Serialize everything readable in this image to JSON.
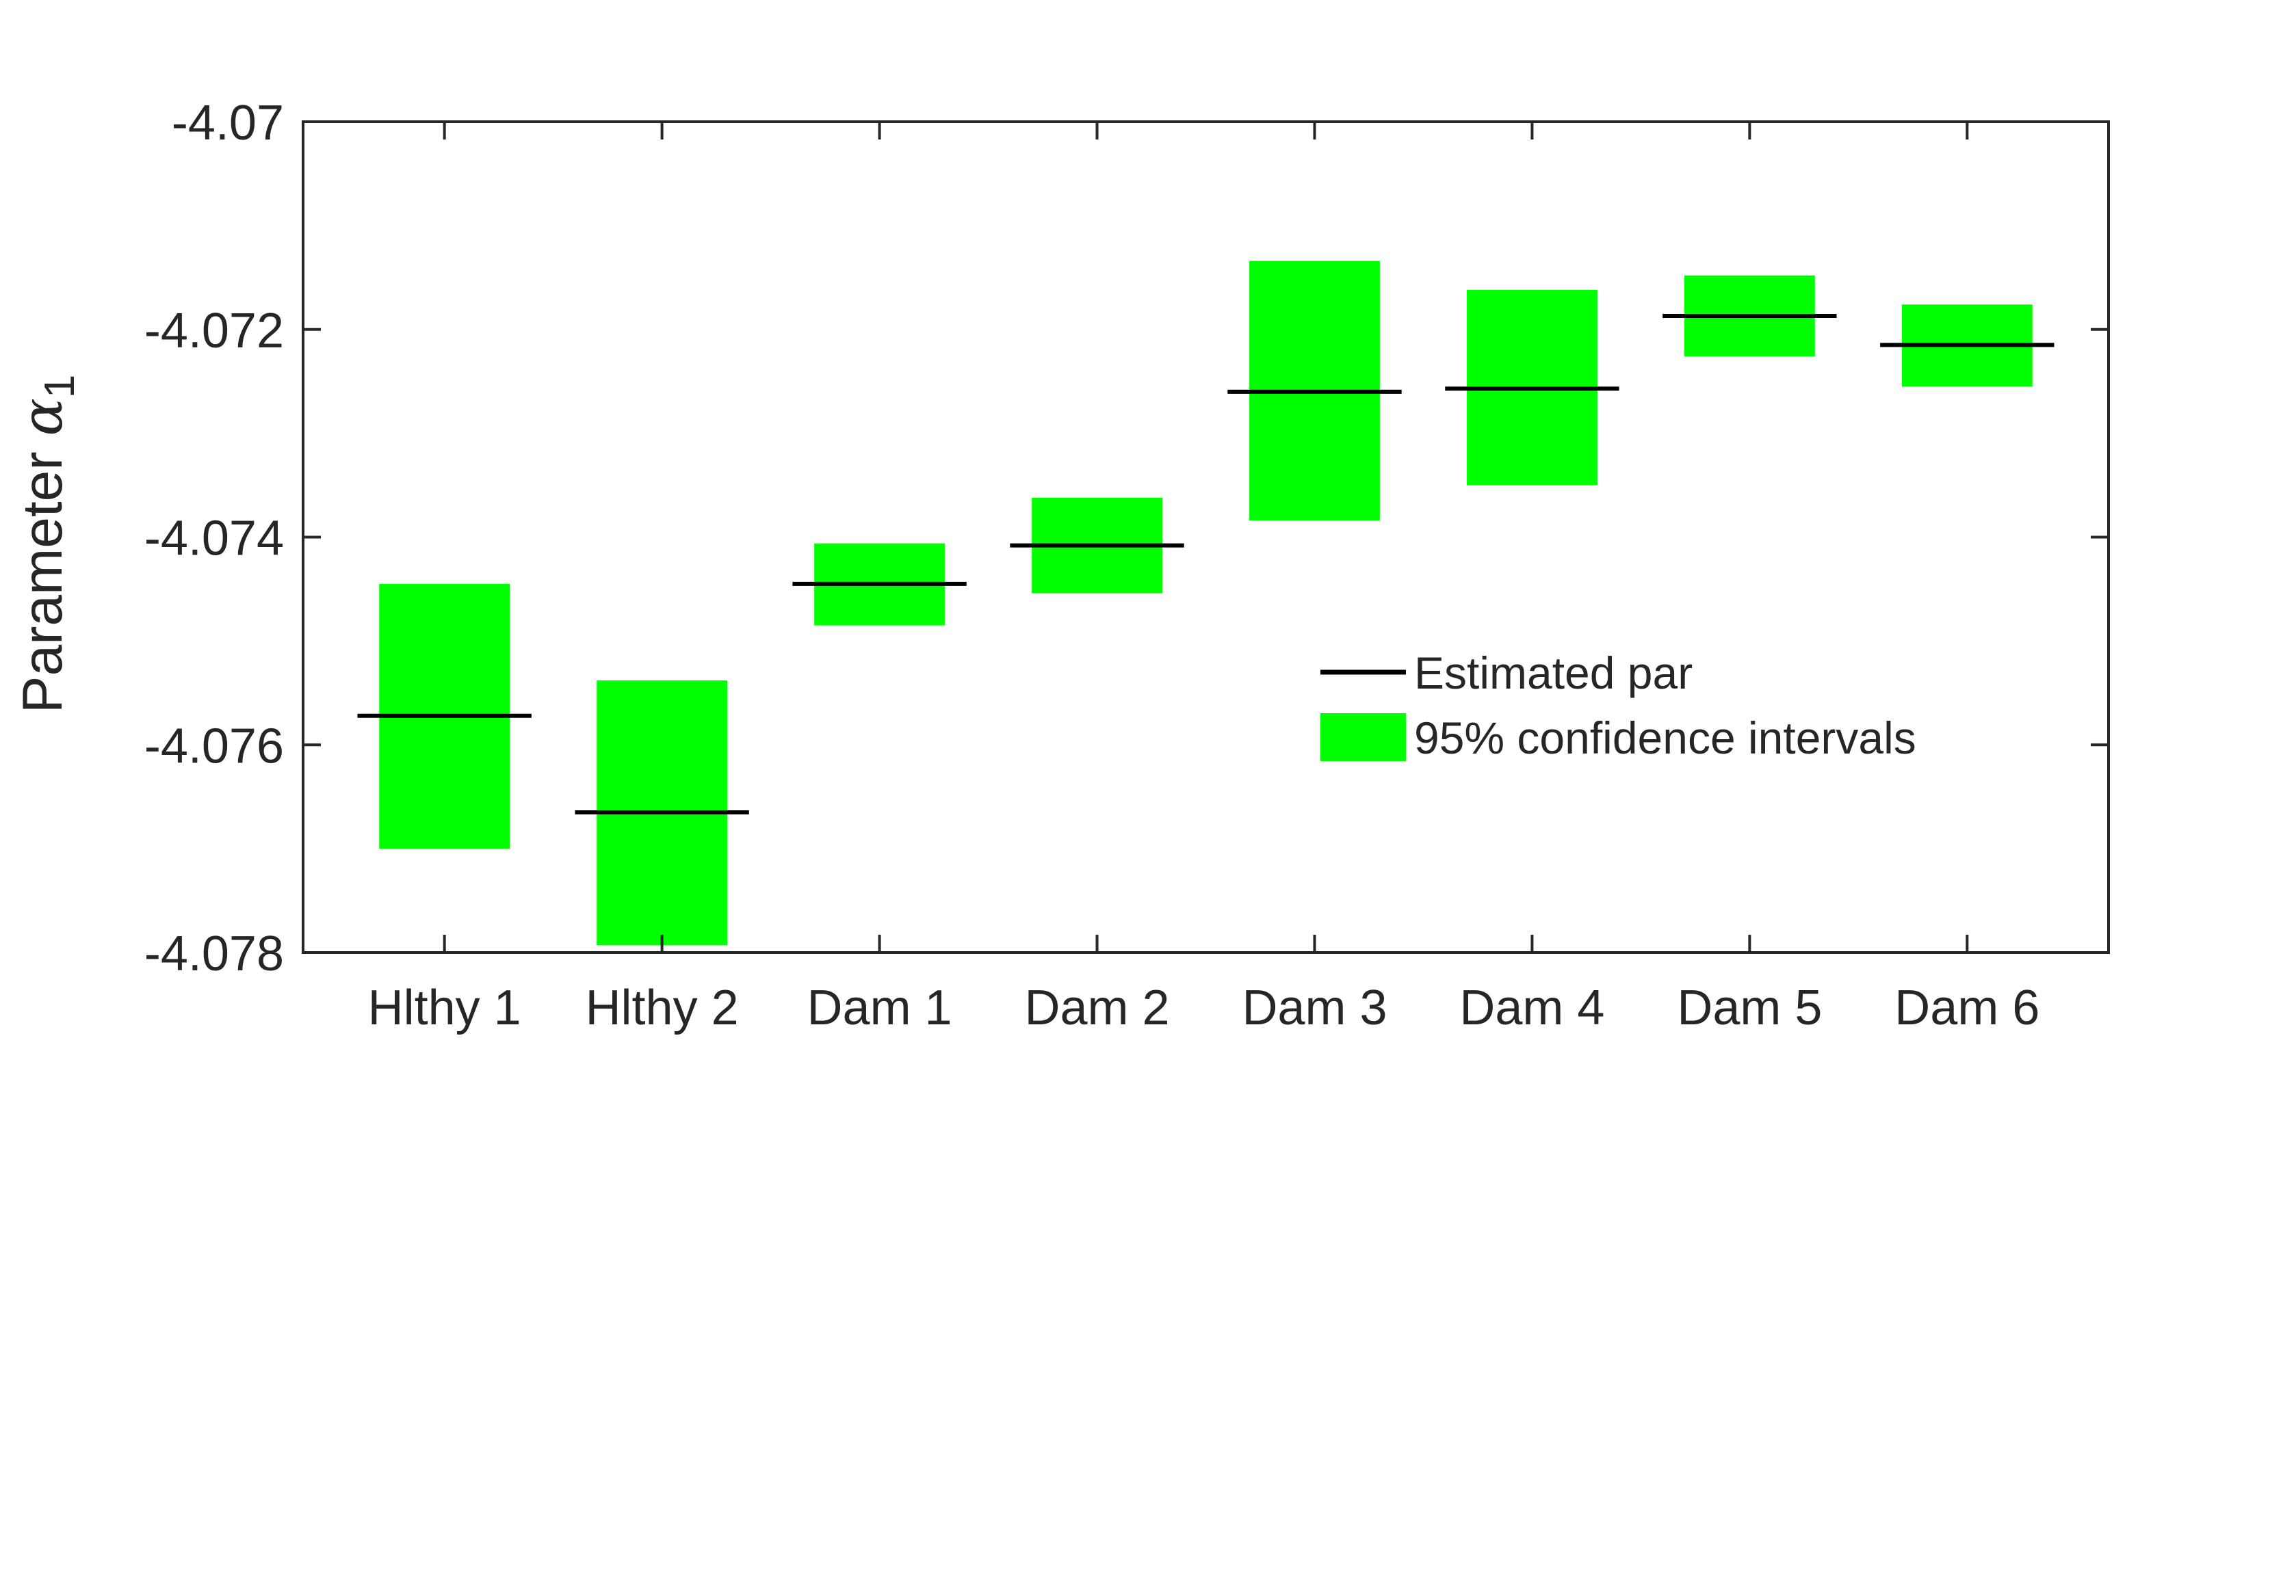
{
  "chart_data": {
    "type": "bar",
    "subtype": "range-bar",
    "categories": [
      "Hlthy 1",
      "Hlthy 2",
      "Dam 1",
      "Dam 2",
      "Dam 3",
      "Dam 4",
      "Dam 5",
      "Dam 6"
    ],
    "estimates": [
      -4.07572,
      -4.07665,
      -4.07445,
      -4.07408,
      -4.0726,
      -4.07257,
      -4.07187,
      -4.07215
    ],
    "ci_lower": [
      -4.077,
      -4.07793,
      -4.07485,
      -4.07454,
      -4.07384,
      -4.0735,
      -4.07226,
      -4.07255
    ],
    "ci_upper": [
      -4.07445,
      -4.07538,
      -4.07406,
      -4.07362,
      -4.07134,
      -4.07162,
      -4.07148,
      -4.07176
    ],
    "ylabel_text": "Parameter ",
    "ylabel_symbol": "α",
    "ylabel_subscript": "1",
    "ylim": [
      -4.078,
      -4.07
    ],
    "yticks": [
      -4.078,
      -4.076,
      -4.074,
      -4.072,
      -4.07
    ],
    "ytick_labels": [
      "-4.078",
      "-4.076",
      "-4.074",
      "-4.072",
      "-4.07"
    ],
    "legend": {
      "placement": "center-right",
      "entries": [
        {
          "label": "Estimated par",
          "kind": "line",
          "color": "#000000"
        },
        {
          "label": "95% confidence intervals",
          "kind": "patch",
          "color": "#00ff00"
        }
      ]
    },
    "colors": {
      "interval": "#00ff00",
      "estimate": "#000000",
      "axis": "#262626"
    },
    "grid": false
  }
}
